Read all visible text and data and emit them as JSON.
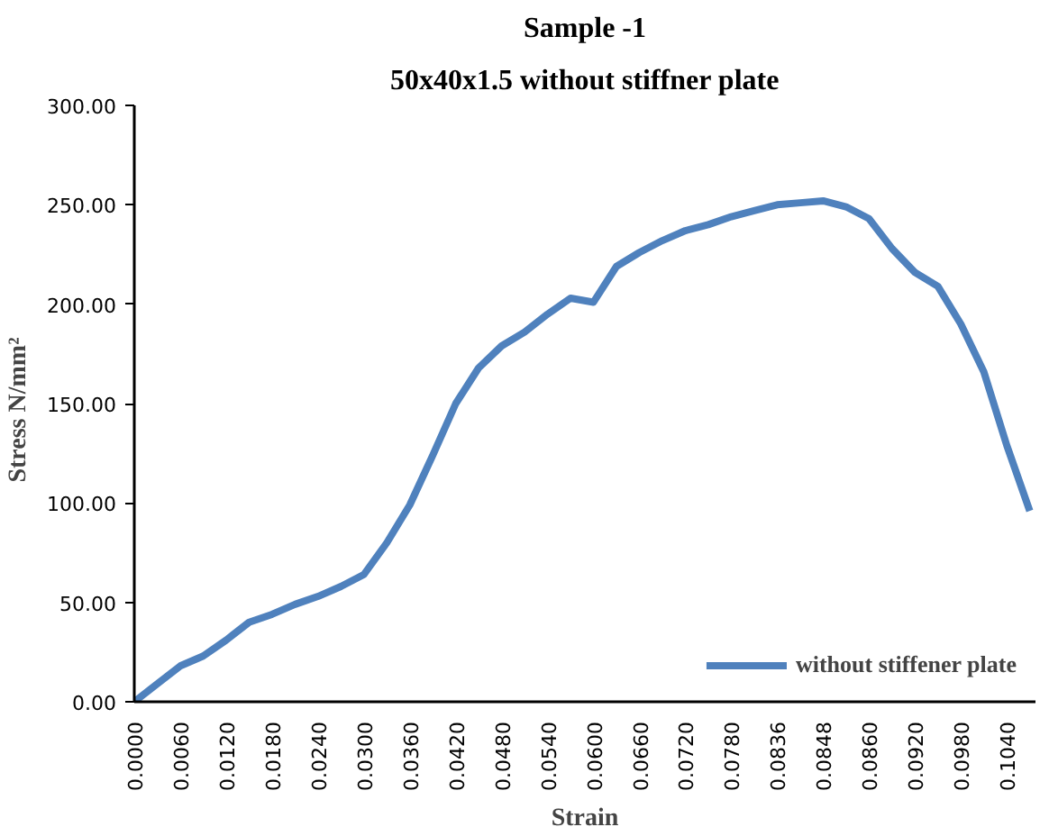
{
  "chart_data": {
    "type": "line",
    "title": "Sample -1",
    "subtitle": "50x40x1.5 without stiffner plate",
    "xlabel": "Strain",
    "ylabel": "Stress   N/mm²",
    "categories": [
      "0.0000",
      null,
      "0.0060",
      null,
      "0.0120",
      null,
      "0.0180",
      null,
      "0.0240",
      null,
      "0.0300",
      null,
      "0.0360",
      null,
      "0.0420",
      null,
      "0.0480",
      null,
      "0.0540",
      null,
      "0.0600",
      null,
      "0.0660",
      null,
      "0.0720",
      null,
      "0.0780",
      null,
      "0.0836",
      null,
      "0.0848",
      null,
      "0.0860",
      null,
      "0.0920",
      null,
      "0.0980",
      null,
      "0.1040",
      null
    ],
    "series": [
      {
        "name": "without stiffener plate",
        "color": "#4f81bd",
        "values": [
          0,
          9,
          18,
          23,
          31,
          40,
          44,
          49,
          53,
          58,
          64,
          80,
          99,
          124,
          150,
          168,
          179,
          186,
          195,
          203,
          201,
          219,
          226,
          232,
          237,
          240,
          244,
          247,
          250,
          251,
          252,
          249,
          243,
          228,
          216,
          209,
          190,
          166,
          129,
          96
        ]
      }
    ],
    "ylim": [
      0,
      300
    ],
    "yticks": [
      {
        "value": 0,
        "label": "0.00"
      },
      {
        "value": 50,
        "label": "50.00"
      },
      {
        "value": 100,
        "label": "100.00"
      },
      {
        "value": 150,
        "label": "150.00"
      },
      {
        "value": 200,
        "label": "200.00"
      },
      {
        "value": 250,
        "label": "250.00"
      },
      {
        "value": 300,
        "label": "300.00"
      }
    ],
    "grid": false,
    "legend": "bottom right",
    "marker": "none",
    "line_style": "solid"
  }
}
